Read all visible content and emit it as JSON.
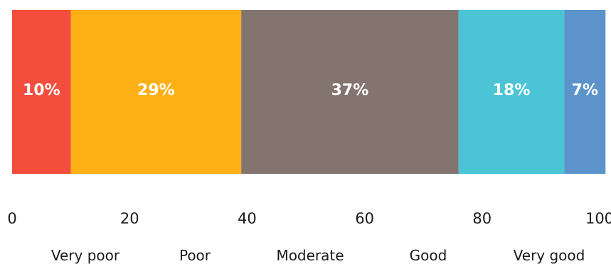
{
  "chart_data": {
    "type": "bar",
    "orientation": "horizontal-stacked",
    "title": "",
    "xlabel": "",
    "ylabel": "",
    "xlim": [
      0,
      100
    ],
    "x_ticks": [
      "0",
      "20",
      "40",
      "60",
      "80",
      "100"
    ],
    "grid": false,
    "legend_position": "bottom",
    "series": [
      {
        "name": "Very poor",
        "value": 10,
        "label": "10%",
        "color": "#F24D3D"
      },
      {
        "name": "Poor",
        "value": 29,
        "label": "29%",
        "color": "#FDB016"
      },
      {
        "name": "Moderate",
        "value": 37,
        "label": "37%",
        "color": "#847470"
      },
      {
        "name": "Good",
        "value": 18,
        "label": "18%",
        "color": "#4BC5D6"
      },
      {
        "name": "Very good",
        "value": 7,
        "label": "7%",
        "color": "#5B93CA"
      }
    ]
  }
}
